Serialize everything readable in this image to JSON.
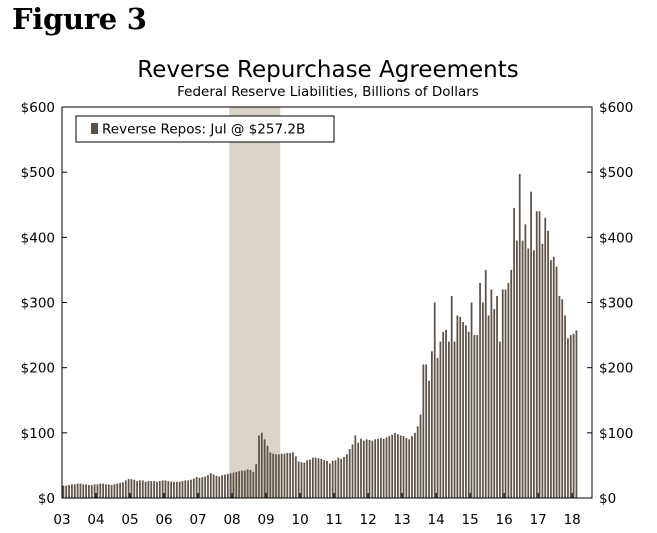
{
  "figure_label": "Figure 3",
  "chart_data": {
    "type": "bar",
    "title": "Reverse Repurchase Agreements",
    "subtitle": "Federal Reserve Liabilities, Billions of Dollars",
    "xlabel": "",
    "ylabel": "",
    "ylim": [
      0,
      600
    ],
    "y_ticks": [
      0,
      100,
      200,
      300,
      400,
      500,
      600
    ],
    "y_tick_labels": [
      "$0",
      "$100",
      "$200",
      "$300",
      "$400",
      "$500",
      "$600"
    ],
    "x_range": [
      2003.0,
      2018.583
    ],
    "x_tick_labels": [
      "03",
      "04",
      "05",
      "06",
      "07",
      "08",
      "09",
      "10",
      "11",
      "12",
      "13",
      "14",
      "15",
      "16",
      "17",
      "18"
    ],
    "recession_shading": [
      2007.917,
      2009.417
    ],
    "legend": "Reverse Repos: Jul @ $257.2B",
    "legend_position": "top-left",
    "colors": {
      "bar": "#5d5248",
      "shade": "#d9d4c7",
      "frame": "#000000",
      "background": "#ffffff"
    },
    "series": [
      {
        "name": "Reverse Repos",
        "start": "2003-01",
        "frequency": "monthly",
        "values": [
          19,
          19,
          20,
          21,
          21,
          22,
          22,
          21,
          21,
          20,
          20,
          21,
          21,
          22,
          22,
          21,
          21,
          20,
          21,
          22,
          23,
          24,
          27,
          29,
          29,
          28,
          26,
          27,
          27,
          25,
          26,
          26,
          26,
          25,
          26,
          27,
          27,
          26,
          25,
          25,
          25,
          25,
          26,
          27,
          27,
          28,
          30,
          32,
          31,
          32,
          33,
          35,
          38,
          36,
          34,
          33,
          35,
          36,
          37,
          38,
          39,
          40,
          41,
          42,
          42,
          44,
          43,
          40,
          52,
          96,
          100,
          90,
          80,
          70,
          68,
          67,
          67,
          68,
          68,
          69,
          69,
          70,
          64,
          56,
          55,
          54,
          58,
          59,
          62,
          62,
          61,
          60,
          58,
          57,
          53,
          57,
          58,
          62,
          60,
          63,
          67,
          75,
          82,
          96,
          85,
          91,
          88,
          90,
          89,
          88,
          90,
          91,
          92,
          91,
          93,
          95,
          97,
          100,
          98,
          96,
          95,
          92,
          90,
          95,
          100,
          110,
          128,
          205,
          205,
          180,
          225,
          300,
          215,
          240,
          255,
          258,
          240,
          310,
          240,
          280,
          278,
          270,
          265,
          255,
          300,
          250,
          250,
          330,
          300,
          350,
          280,
          320,
          290,
          310,
          240,
          320,
          320,
          330,
          350,
          445,
          395,
          497,
          395,
          420,
          383,
          470,
          380,
          440,
          440,
          390,
          430,
          410,
          365,
          370,
          355,
          310,
          305,
          280,
          245,
          250,
          252,
          257.2
        ]
      }
    ]
  }
}
